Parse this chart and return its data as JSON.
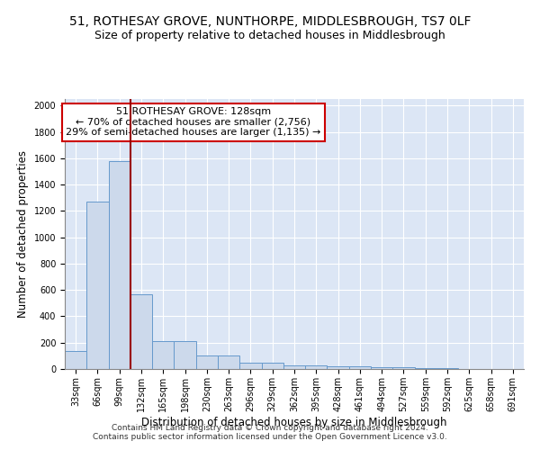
{
  "title": "51, ROTHESAY GROVE, NUNTHORPE, MIDDLESBROUGH, TS7 0LF",
  "subtitle": "Size of property relative to detached houses in Middlesbrough",
  "xlabel": "Distribution of detached houses by size in Middlesbrough",
  "ylabel": "Number of detached properties",
  "bar_labels": [
    "33sqm",
    "66sqm",
    "99sqm",
    "132sqm",
    "165sqm",
    "198sqm",
    "230sqm",
    "263sqm",
    "296sqm",
    "329sqm",
    "362sqm",
    "395sqm",
    "428sqm",
    "461sqm",
    "494sqm",
    "527sqm",
    "559sqm",
    "592sqm",
    "625sqm",
    "658sqm",
    "691sqm"
  ],
  "bar_heights": [
    140,
    1270,
    1580,
    570,
    215,
    215,
    100,
    100,
    50,
    50,
    25,
    25,
    20,
    20,
    15,
    15,
    5,
    5,
    0,
    0,
    0
  ],
  "bar_color": "#ccd9eb",
  "bar_edge_color": "#6699cc",
  "property_line_color": "#990000",
  "annotation_text": "51 ROTHESAY GROVE: 128sqm\n← 70% of detached houses are smaller (2,756)\n29% of semi-detached houses are larger (1,135) →",
  "annotation_box_color": "#ffffff",
  "annotation_box_edge": "#cc0000",
  "ylim": [
    0,
    2050
  ],
  "yticks": [
    0,
    200,
    400,
    600,
    800,
    1000,
    1200,
    1400,
    1600,
    1800,
    2000
  ],
  "background_color": "#dce6f5",
  "grid_color": "#c0cce0",
  "footer": "Contains HM Land Registry data © Crown copyright and database right 2024.\nContains public sector information licensed under the Open Government Licence v3.0.",
  "title_fontsize": 10,
  "subtitle_fontsize": 9,
  "axis_label_fontsize": 8.5,
  "tick_fontsize": 7,
  "annotation_fontsize": 8,
  "footer_fontsize": 6.5
}
